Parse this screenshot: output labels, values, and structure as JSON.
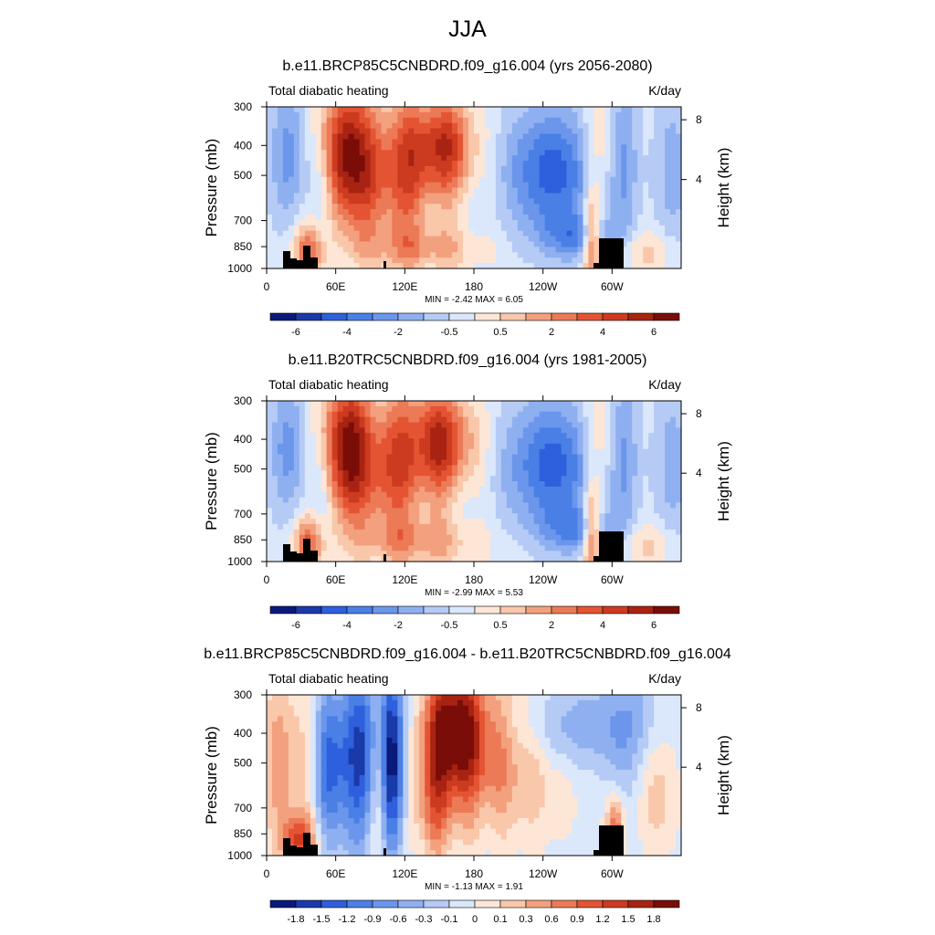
{
  "figure_title": "JJA",
  "chart_data": [
    {
      "type": "heatmap",
      "title": "b.e11.BRCP85C5CNBDRD.f09_g16.004 (yrs 2056-2080)",
      "left_label": "Total diabatic heating",
      "right_label": "K/day",
      "ylabel": "Pressure (mb)",
      "y2label": "Height (km)",
      "y_ticks": [
        "300",
        "400",
        "500",
        "700",
        "850",
        "1000"
      ],
      "y2_ticks": [
        "8",
        "4"
      ],
      "x_ticks": [
        "0",
        "60E",
        "120E",
        "180",
        "120W",
        "60W"
      ],
      "min_max_label": "MIN =  -2.42  MAX =   6.05",
      "min": -2.42,
      "max": 6.05,
      "colorbar_labels": [
        "-6",
        "-4",
        "-2",
        "-0.5",
        "0.5",
        "2",
        "4",
        "6"
      ]
    },
    {
      "type": "heatmap",
      "title": "b.e11.B20TRC5CNBDRD.f09_g16.004 (yrs 1981-2005)",
      "left_label": "Total diabatic heating",
      "right_label": "K/day",
      "ylabel": "Pressure (mb)",
      "y2label": "Height (km)",
      "y_ticks": [
        "300",
        "400",
        "500",
        "700",
        "850",
        "1000"
      ],
      "y2_ticks": [
        "8",
        "4"
      ],
      "x_ticks": [
        "0",
        "60E",
        "120E",
        "180",
        "120W",
        "60W"
      ],
      "min_max_label": "MIN =  -2.99  MAX =   5.53",
      "min": -2.99,
      "max": 5.53,
      "colorbar_labels": [
        "-6",
        "-4",
        "-2",
        "-0.5",
        "0.5",
        "2",
        "4",
        "6"
      ]
    },
    {
      "type": "heatmap",
      "title": "b.e11.BRCP85C5CNBDRD.f09_g16.004 - b.e11.B20TRC5CNBDRD.f09_g16.004",
      "left_label": "Total diabatic heating",
      "right_label": "K/day",
      "ylabel": "Pressure (mb)",
      "y2label": "Height (km)",
      "y_ticks": [
        "300",
        "400",
        "500",
        "700",
        "850",
        "1000"
      ],
      "y2_ticks": [
        "8",
        "4"
      ],
      "x_ticks": [
        "0",
        "60E",
        "120E",
        "180",
        "120W",
        "60W"
      ],
      "min_max_label": "MIN =  -1.13  MAX =   1.91",
      "min": -1.13,
      "max": 1.91,
      "colorbar_labels": [
        "-1.8",
        "-1.5",
        "-1.2",
        "-0.9",
        "-0.6",
        "-0.3",
        "-0.1",
        "0",
        "0.1",
        "0.3",
        "0.6",
        "0.9",
        "1.2",
        "1.5",
        "1.8"
      ]
    }
  ],
  "colormap": [
    "#0a1a7a",
    "#1a3aaa",
    "#2e5fdc",
    "#4a7fe6",
    "#6b96ec",
    "#8fb0f0",
    "#b5cbf5",
    "#dbe7fb",
    "#fde6d6",
    "#f9c7aa",
    "#f3a07e",
    "#ec7a57",
    "#e45433",
    "#cc3a1f",
    "#a82312",
    "#7a0d08"
  ],
  "terrain_color": "#000000"
}
